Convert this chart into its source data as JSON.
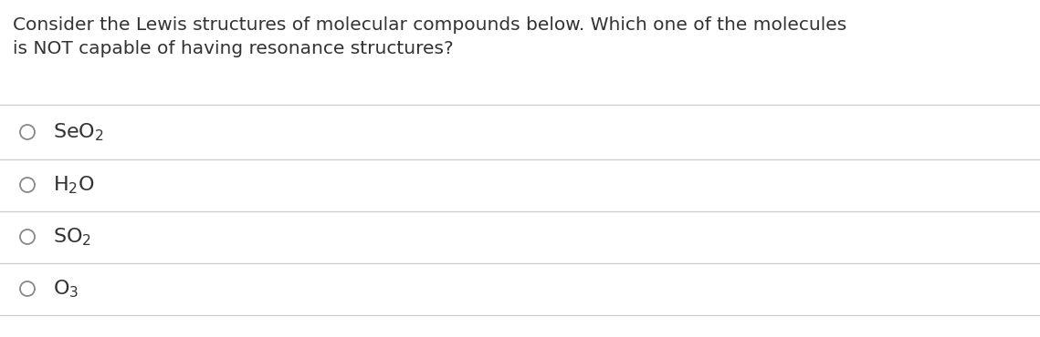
{
  "question_line1": "Consider the Lewis structures of molecular compounds below. Which one of the molecules",
  "question_line2": "is NOT capable of having resonance structures?",
  "options": [
    {
      "formula": "SeO$_{2}$"
    },
    {
      "formula": "H$_{2}$O"
    },
    {
      "formula": "SO$_{2}$"
    },
    {
      "formula": "O$_{3}$"
    }
  ],
  "bg_color": "#ffffff",
  "text_color": "#333333",
  "line_color": "#cccccc",
  "question_fontsize": 14.5,
  "option_fontsize": 16,
  "circle_color": "#888888"
}
